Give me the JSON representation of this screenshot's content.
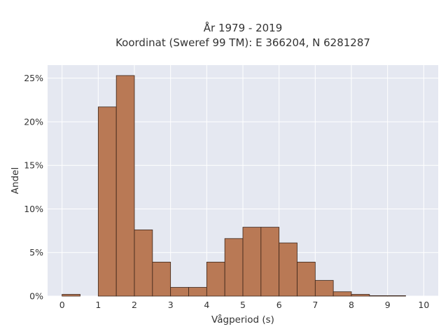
{
  "chart_data": {
    "type": "bar",
    "title": "År 1979 - 2019",
    "subtitle": "Koordinat (Sweref 99 TM): E 366204, N 6281287",
    "xlabel": "Vågperiod (s)",
    "ylabel": "Andel",
    "xlim": [
      -0.4,
      10.4
    ],
    "ylim": [
      0,
      26.5
    ],
    "bin_width": 0.5,
    "x_ticks": [
      0,
      1,
      2,
      3,
      4,
      5,
      6,
      7,
      8,
      9,
      10
    ],
    "x_tick_labels": [
      "0",
      "1",
      "2",
      "3",
      "4",
      "5",
      "6",
      "7",
      "8",
      "9",
      "10"
    ],
    "y_ticks": [
      0,
      5,
      10,
      15,
      20,
      25
    ],
    "y_tick_labels": [
      "0%",
      "5%",
      "10%",
      "15%",
      "20%",
      "25%"
    ],
    "bins": [
      {
        "start": 0.0,
        "value": 0.2
      },
      {
        "start": 1.0,
        "value": 21.7
      },
      {
        "start": 1.5,
        "value": 25.3
      },
      {
        "start": 2.0,
        "value": 7.6
      },
      {
        "start": 2.5,
        "value": 3.9
      },
      {
        "start": 3.0,
        "value": 1.0
      },
      {
        "start": 3.5,
        "value": 1.0
      },
      {
        "start": 4.0,
        "value": 3.9
      },
      {
        "start": 4.5,
        "value": 6.6
      },
      {
        "start": 5.0,
        "value": 7.9
      },
      {
        "start": 5.5,
        "value": 7.9
      },
      {
        "start": 6.0,
        "value": 6.1
      },
      {
        "start": 6.5,
        "value": 3.9
      },
      {
        "start": 7.0,
        "value": 1.8
      },
      {
        "start": 7.5,
        "value": 0.5
      },
      {
        "start": 8.0,
        "value": 0.2
      },
      {
        "start": 8.5,
        "value": 0.05
      },
      {
        "start": 9.0,
        "value": 0.05
      }
    ],
    "bar_color": "#b97955",
    "bar_edge_color": "#3a2418",
    "plot_bg_color": "#e5e8f1",
    "grid_color": "#ffffff",
    "grid": true
  }
}
